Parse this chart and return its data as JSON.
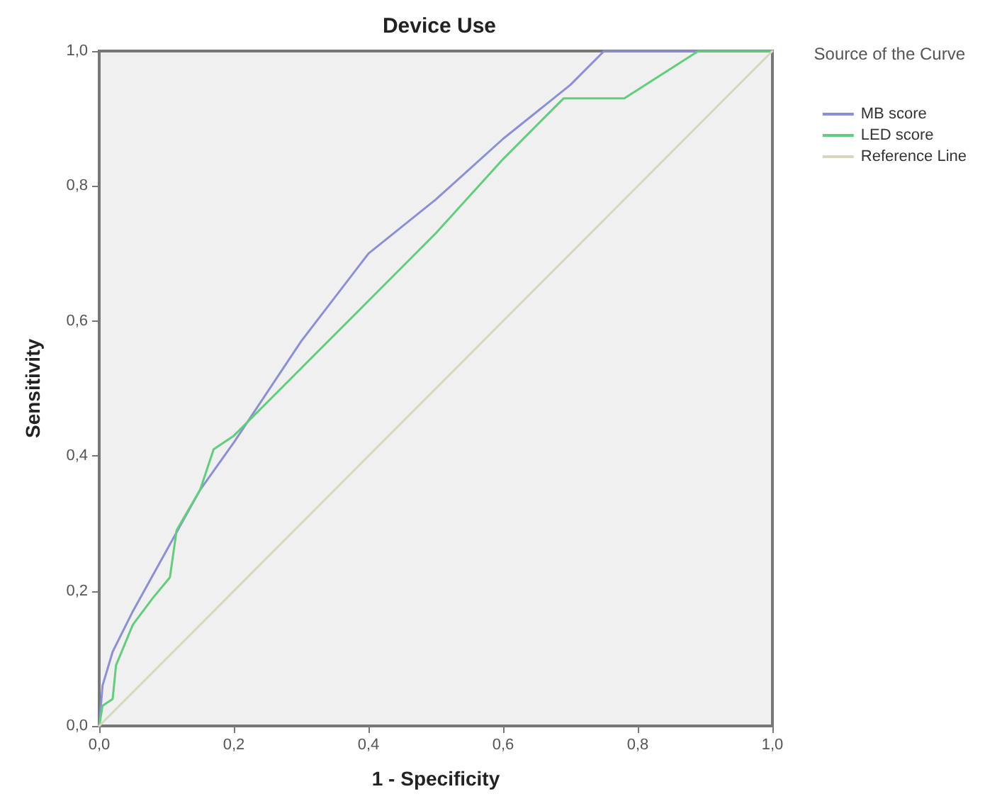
{
  "chart_data": {
    "type": "line",
    "title": "Device Use",
    "xlabel": "1 - Specificity",
    "ylabel": "Sensitivity",
    "legend_title": "Source of the Curve",
    "legend": "right",
    "grid": false,
    "marker": "none",
    "line_style": "solid",
    "xlim": [
      0,
      1
    ],
    "ylim": [
      0,
      1
    ],
    "xticks": [
      {
        "value": 0,
        "label": "0,0"
      },
      {
        "value": 0.2,
        "label": "0,2"
      },
      {
        "value": 0.4,
        "label": "0,4"
      },
      {
        "value": 0.6,
        "label": "0,6"
      },
      {
        "value": 0.8,
        "label": "0,8"
      },
      {
        "value": 1,
        "label": "1,0"
      }
    ],
    "yticks": [
      {
        "value": 0,
        "label": "0,0"
      },
      {
        "value": 0.2,
        "label": "0,2"
      },
      {
        "value": 0.4,
        "label": "0,4"
      },
      {
        "value": 0.6,
        "label": "0,6"
      },
      {
        "value": 0.8,
        "label": "0,8"
      },
      {
        "value": 1,
        "label": "1,0"
      }
    ],
    "series": [
      {
        "name": "MB score",
        "color": "#8c8fd8",
        "x": [
          0,
          0.005,
          0.02,
          0.05,
          0.1,
          0.15,
          0.2,
          0.3,
          0.4,
          0.5,
          0.6,
          0.7,
          0.75,
          1
        ],
        "values": [
          0,
          0.06,
          0.11,
          0.17,
          0.26,
          0.35,
          0.42,
          0.57,
          0.7,
          0.78,
          0.87,
          0.95,
          1,
          1
        ]
      },
      {
        "name": "LED score",
        "color": "#5fcf7a",
        "x": [
          0,
          0.005,
          0.02,
          0.025,
          0.05,
          0.08,
          0.105,
          0.115,
          0.15,
          0.17,
          0.2,
          0.3,
          0.4,
          0.5,
          0.6,
          0.69,
          0.78,
          0.89,
          1
        ],
        "values": [
          0,
          0.03,
          0.04,
          0.09,
          0.15,
          0.19,
          0.22,
          0.29,
          0.35,
          0.41,
          0.43,
          0.53,
          0.63,
          0.73,
          0.84,
          0.93,
          0.93,
          1,
          1
        ]
      },
      {
        "name": "Reference Line",
        "color": "#d9d6c0",
        "x": [
          0,
          1
        ],
        "values": [
          0,
          1
        ]
      }
    ]
  }
}
